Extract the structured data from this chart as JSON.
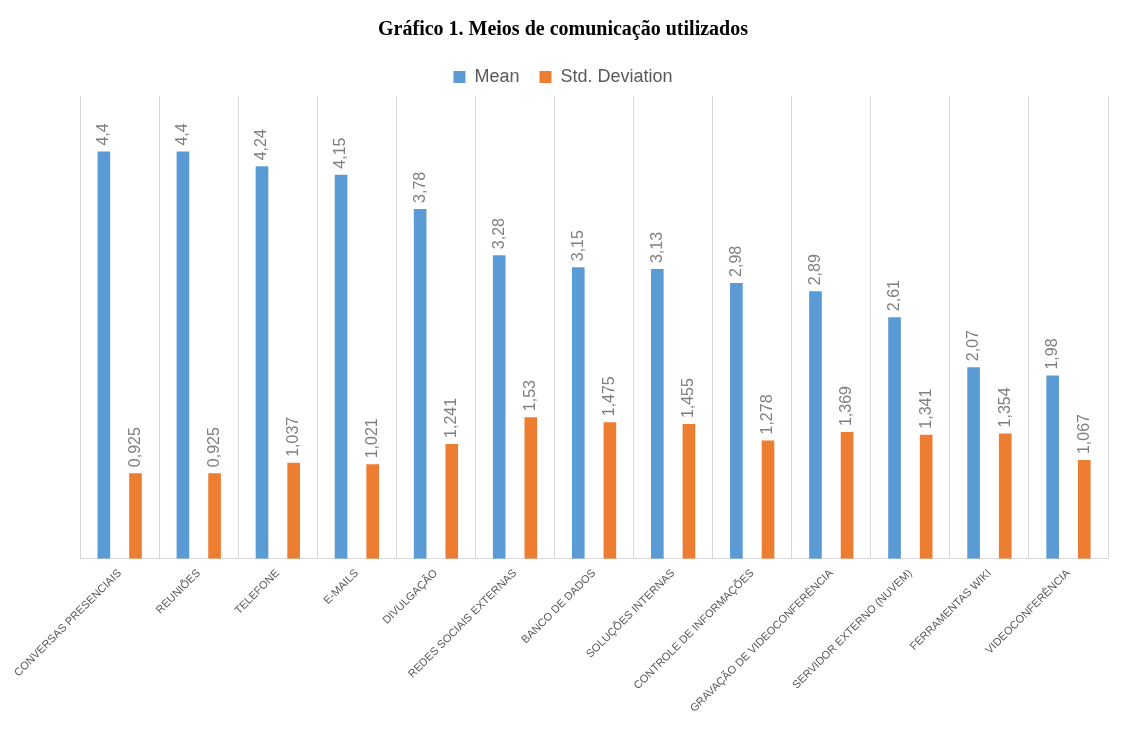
{
  "chart_data": {
    "type": "bar",
    "title": "Gráfico 1. Meios de comunicação utilizados",
    "categories": [
      "CONVERSAS PRESENCIAIS",
      "REUNIÕES",
      "TELEFONE",
      "E-MAILS",
      "DIVULGAÇÃO",
      "REDES SOCIAIS EXTERNAS",
      "BANCO DE DADOS",
      "SOLUÇÕES INTERNAS",
      "CONTROLE DE INFORMAÇÕES",
      "GRAVAÇÃO DE VIDEOCONFERÊNCIA",
      "SERVIDOR EXTERNO (NUVEM)",
      "FERRAMENTAS WIKI",
      "VIDEOCONFERÊNCIA"
    ],
    "series": [
      {
        "name": "Mean",
        "color": "#5b9bd5",
        "values": [
          4.4,
          4.4,
          4.24,
          4.15,
          3.78,
          3.28,
          3.15,
          3.13,
          2.98,
          2.89,
          2.61,
          2.07,
          1.98
        ],
        "value_labels": [
          "4,4",
          "4,4",
          "4,24",
          "4,15",
          "3,78",
          "3,28",
          "3,15",
          "3,13",
          "2,98",
          "2,89",
          "2,61",
          "2,07",
          "1,98"
        ]
      },
      {
        "name": "Std. Deviation",
        "color": "#ed7d31",
        "values": [
          0.925,
          0.925,
          1.037,
          1.021,
          1.241,
          1.53,
          1.475,
          1.455,
          1.278,
          1.369,
          1.341,
          1.354,
          1.067
        ],
        "value_labels": [
          "0,925",
          "0,925",
          "1,037",
          "1,021",
          "1,241",
          "1,53",
          "1,475",
          "1,455",
          "1,278",
          "1,369",
          "1,341",
          "1,354",
          "1,067"
        ]
      }
    ],
    "grid": "x",
    "legend": "top"
  }
}
